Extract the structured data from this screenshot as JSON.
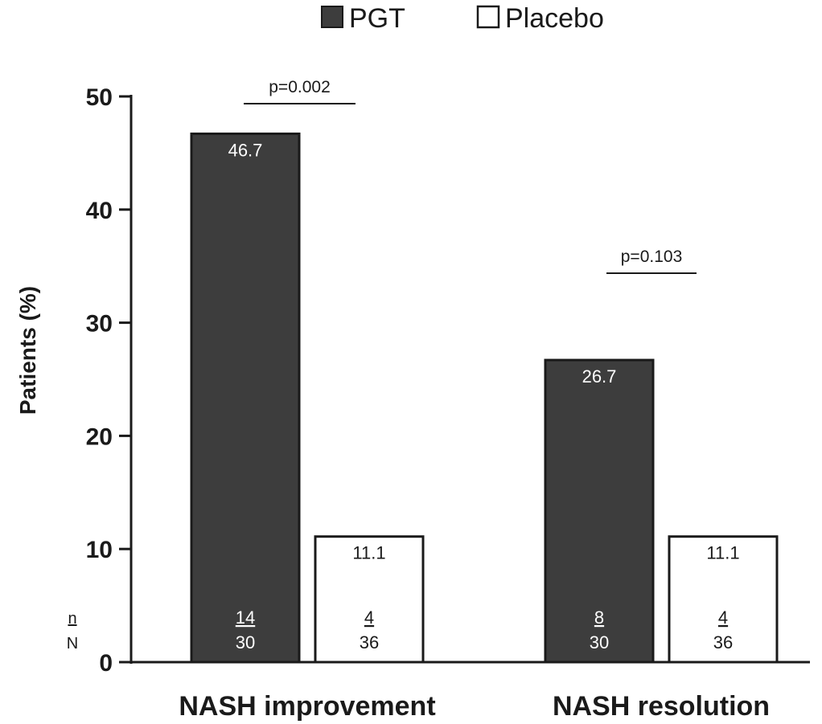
{
  "chart_data": {
    "type": "bar",
    "title": "",
    "xlabel": "",
    "ylabel": "Patients (%)",
    "ylim": [
      0,
      50
    ],
    "yticks": [
      "0",
      "10",
      "20",
      "30",
      "40",
      "50"
    ],
    "grid": false,
    "legend_position": "top-center",
    "categories": [
      "NASH improvement",
      "NASH resolution"
    ],
    "series": [
      {
        "name": "PGT",
        "color": "#3d3d3d",
        "values": [
          46.7,
          26.7
        ],
        "value_labels": [
          "46.7",
          "26.7"
        ],
        "n": [
          "14",
          "8"
        ],
        "N": [
          "30",
          "30"
        ]
      },
      {
        "name": "Placebo",
        "color": "#ffffff",
        "values": [
          11.1,
          11.1
        ],
        "value_labels": [
          "11.1",
          "11.1"
        ],
        "n": [
          "4",
          "4"
        ],
        "N": [
          "36",
          "36"
        ]
      }
    ],
    "annotations": {
      "n_label": "n",
      "N_label": "N",
      "p_values": [
        "p=0.002",
        "p=0.103"
      ]
    }
  }
}
